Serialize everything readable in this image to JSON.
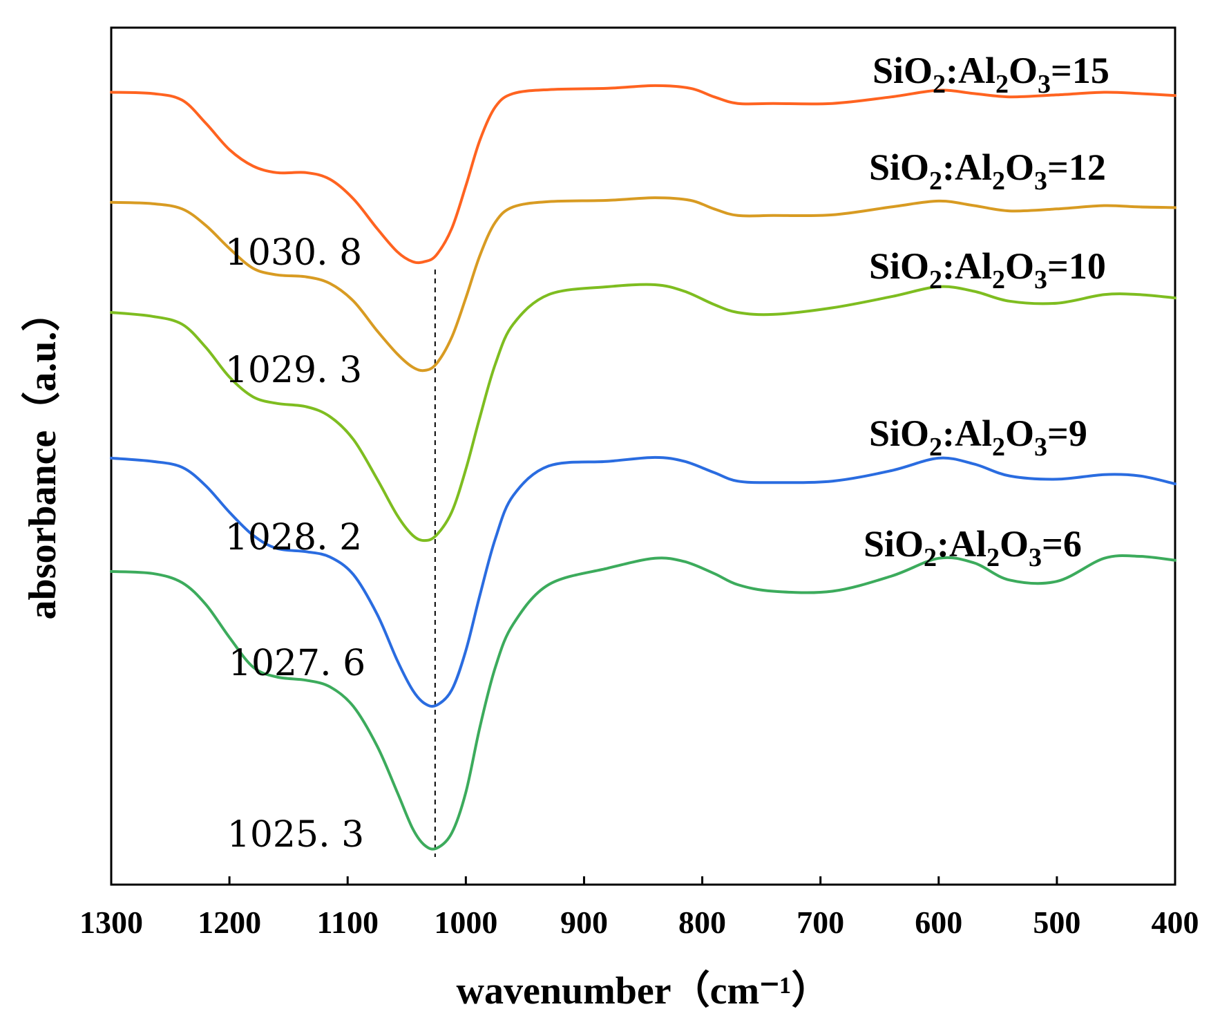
{
  "chart_data": {
    "type": "line",
    "title": "",
    "xlabel": "wavenumber（cm⁻¹）",
    "ylabel": "absorbance（a.u.）",
    "xlim": [
      1300,
      400
    ],
    "ylim": [
      0,
      13
    ],
    "x_reversed": true,
    "ticks": [
      "1300",
      "1200",
      "1100",
      "1000",
      "900",
      "800",
      "700",
      "600",
      "500",
      "400"
    ],
    "reference_line": {
      "x": 1026,
      "style": "dashed"
    },
    "series": [
      {
        "name": "SiO2:Al2O3=15",
        "label": {
          "base": "SiO",
          "s1": "2",
          "mid": ":Al",
          "s2": "2",
          "end": "O",
          "s3": "3",
          "tail": "=15"
        },
        "color": "#ff6320",
        "peak_label": "1030. 8",
        "points": [
          [
            1300,
            12.02
          ],
          [
            1265,
            12.0
          ],
          [
            1240,
            11.9
          ],
          [
            1220,
            11.55
          ],
          [
            1200,
            11.15
          ],
          [
            1180,
            10.9
          ],
          [
            1160,
            10.8
          ],
          [
            1135,
            10.8
          ],
          [
            1115,
            10.7
          ],
          [
            1095,
            10.4
          ],
          [
            1075,
            9.95
          ],
          [
            1058,
            9.6
          ],
          [
            1045,
            9.45
          ],
          [
            1035,
            9.45
          ],
          [
            1025,
            9.55
          ],
          [
            1012,
            9.95
          ],
          [
            1000,
            10.6
          ],
          [
            988,
            11.3
          ],
          [
            975,
            11.8
          ],
          [
            960,
            12.0
          ],
          [
            930,
            12.06
          ],
          [
            880,
            12.08
          ],
          [
            840,
            12.12
          ],
          [
            810,
            12.08
          ],
          [
            790,
            11.95
          ],
          [
            770,
            11.85
          ],
          [
            740,
            11.85
          ],
          [
            690,
            11.85
          ],
          [
            640,
            11.95
          ],
          [
            600,
            12.05
          ],
          [
            570,
            12.0
          ],
          [
            540,
            11.95
          ],
          [
            500,
            11.98
          ],
          [
            460,
            12.02
          ],
          [
            430,
            12.0
          ],
          [
            400,
            11.97
          ]
        ]
      },
      {
        "name": "SiO2:Al2O3=12",
        "label": {
          "base": "SiO",
          "s1": "2",
          "mid": ":Al",
          "s2": "2",
          "end": "O",
          "s3": "3",
          "tail": "=12"
        },
        "color": "#d89b22",
        "peak_label": "1029. 3",
        "points": [
          [
            1300,
            10.35
          ],
          [
            1265,
            10.33
          ],
          [
            1240,
            10.25
          ],
          [
            1220,
            10.0
          ],
          [
            1200,
            9.65
          ],
          [
            1180,
            9.35
          ],
          [
            1160,
            9.25
          ],
          [
            1135,
            9.22
          ],
          [
            1115,
            9.12
          ],
          [
            1095,
            8.85
          ],
          [
            1075,
            8.4
          ],
          [
            1058,
            8.05
          ],
          [
            1045,
            7.85
          ],
          [
            1035,
            7.8
          ],
          [
            1025,
            7.9
          ],
          [
            1012,
            8.3
          ],
          [
            1000,
            8.9
          ],
          [
            988,
            9.55
          ],
          [
            975,
            10.05
          ],
          [
            960,
            10.28
          ],
          [
            930,
            10.36
          ],
          [
            880,
            10.38
          ],
          [
            840,
            10.42
          ],
          [
            810,
            10.38
          ],
          [
            790,
            10.25
          ],
          [
            770,
            10.15
          ],
          [
            740,
            10.15
          ],
          [
            690,
            10.16
          ],
          [
            640,
            10.28
          ],
          [
            600,
            10.37
          ],
          [
            570,
            10.3
          ],
          [
            540,
            10.22
          ],
          [
            500,
            10.25
          ],
          [
            460,
            10.3
          ],
          [
            430,
            10.28
          ],
          [
            400,
            10.27
          ]
        ]
      },
      {
        "name": "SiO2:Al2O3=10",
        "label": {
          "base": "SiO",
          "s1": "2",
          "mid": ":Al",
          "s2": "2",
          "end": "O",
          "s3": "3",
          "tail": "=10"
        },
        "color": "#7ebd20",
        "peak_label": "1028. 2",
        "points": [
          [
            1300,
            8.68
          ],
          [
            1265,
            8.62
          ],
          [
            1240,
            8.5
          ],
          [
            1220,
            8.15
          ],
          [
            1200,
            7.7
          ],
          [
            1180,
            7.4
          ],
          [
            1160,
            7.3
          ],
          [
            1135,
            7.25
          ],
          [
            1115,
            7.1
          ],
          [
            1095,
            6.75
          ],
          [
            1075,
            6.15
          ],
          [
            1058,
            5.6
          ],
          [
            1045,
            5.3
          ],
          [
            1035,
            5.22
          ],
          [
            1025,
            5.3
          ],
          [
            1012,
            5.65
          ],
          [
            1000,
            6.3
          ],
          [
            988,
            7.1
          ],
          [
            975,
            7.9
          ],
          [
            960,
            8.5
          ],
          [
            930,
            8.95
          ],
          [
            880,
            9.07
          ],
          [
            840,
            9.1
          ],
          [
            815,
            9.0
          ],
          [
            790,
            8.8
          ],
          [
            770,
            8.68
          ],
          [
            740,
            8.65
          ],
          [
            690,
            8.75
          ],
          [
            640,
            8.92
          ],
          [
            600,
            9.07
          ],
          [
            570,
            9.0
          ],
          [
            540,
            8.85
          ],
          [
            500,
            8.82
          ],
          [
            460,
            8.95
          ],
          [
            430,
            8.95
          ],
          [
            400,
            8.9
          ]
        ]
      },
      {
        "name": "SiO2:Al2O3=9",
        "label": {
          "base": "SiO",
          "s1": "2",
          "mid": ":Al",
          "s2": "2",
          "end": "O",
          "s3": "3",
          "tail": "=9"
        },
        "color": "#2a6ce0",
        "peak_label": "1027. 6",
        "points": [
          [
            1300,
            6.47
          ],
          [
            1265,
            6.42
          ],
          [
            1240,
            6.33
          ],
          [
            1220,
            6.05
          ],
          [
            1200,
            5.65
          ],
          [
            1180,
            5.3
          ],
          [
            1160,
            5.1
          ],
          [
            1135,
            5.05
          ],
          [
            1115,
            4.97
          ],
          [
            1095,
            4.7
          ],
          [
            1075,
            4.1
          ],
          [
            1058,
            3.4
          ],
          [
            1045,
            2.95
          ],
          [
            1035,
            2.75
          ],
          [
            1025,
            2.72
          ],
          [
            1012,
            2.95
          ],
          [
            1000,
            3.55
          ],
          [
            988,
            4.4
          ],
          [
            975,
            5.25
          ],
          [
            960,
            5.9
          ],
          [
            930,
            6.35
          ],
          [
            880,
            6.42
          ],
          [
            840,
            6.48
          ],
          [
            815,
            6.42
          ],
          [
            790,
            6.25
          ],
          [
            770,
            6.12
          ],
          [
            740,
            6.1
          ],
          [
            690,
            6.12
          ],
          [
            640,
            6.28
          ],
          [
            600,
            6.47
          ],
          [
            570,
            6.38
          ],
          [
            540,
            6.2
          ],
          [
            500,
            6.15
          ],
          [
            460,
            6.22
          ],
          [
            430,
            6.2
          ],
          [
            400,
            6.08
          ]
        ]
      },
      {
        "name": "SiO2:Al2O3=6",
        "label": {
          "base": "SiO",
          "s1": "2",
          "mid": ":Al",
          "s2": "2",
          "end": "O",
          "s3": "3",
          "tail": "=6"
        },
        "color": "#3cab5c",
        "peak_label": "1025. 3",
        "points": [
          [
            1300,
            4.75
          ],
          [
            1265,
            4.72
          ],
          [
            1240,
            4.58
          ],
          [
            1220,
            4.25
          ],
          [
            1200,
            3.75
          ],
          [
            1180,
            3.3
          ],
          [
            1160,
            3.15
          ],
          [
            1135,
            3.1
          ],
          [
            1115,
            3.0
          ],
          [
            1095,
            2.7
          ],
          [
            1075,
            2.1
          ],
          [
            1058,
            1.4
          ],
          [
            1045,
            0.85
          ],
          [
            1035,
            0.6
          ],
          [
            1025,
            0.55
          ],
          [
            1012,
            0.78
          ],
          [
            1000,
            1.4
          ],
          [
            988,
            2.4
          ],
          [
            975,
            3.3
          ],
          [
            960,
            3.95
          ],
          [
            930,
            4.55
          ],
          [
            880,
            4.8
          ],
          [
            840,
            4.95
          ],
          [
            815,
            4.9
          ],
          [
            790,
            4.72
          ],
          [
            770,
            4.55
          ],
          [
            740,
            4.45
          ],
          [
            690,
            4.45
          ],
          [
            640,
            4.68
          ],
          [
            600,
            4.95
          ],
          [
            570,
            4.88
          ],
          [
            540,
            4.62
          ],
          [
            500,
            4.6
          ],
          [
            460,
            4.95
          ],
          [
            430,
            4.98
          ],
          [
            400,
            4.92
          ]
        ]
      }
    ]
  }
}
